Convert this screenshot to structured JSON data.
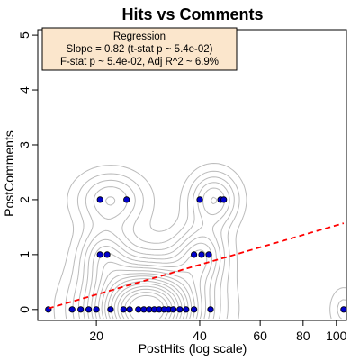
{
  "chart_data": {
    "type": "scatter",
    "title": "Hits vs Comments",
    "xlabel": "PostHits (log scale)",
    "ylabel": "PostComments",
    "x_scale": "log",
    "xlim": [
      13.5,
      107
    ],
    "ylim": [
      -0.2,
      5.1
    ],
    "x_ticks": [
      20,
      40,
      60,
      80,
      100
    ],
    "y_ticks": [
      0,
      1,
      2,
      3,
      4,
      5
    ],
    "points": [
      {
        "x": 14.5,
        "y": 0
      },
      {
        "x": 17,
        "y": 0
      },
      {
        "x": 18,
        "y": 0
      },
      {
        "x": 19,
        "y": 0
      },
      {
        "x": 20,
        "y": 0
      },
      {
        "x": 22,
        "y": 0
      },
      {
        "x": 24,
        "y": 0
      },
      {
        "x": 25,
        "y": 0
      },
      {
        "x": 26.5,
        "y": 0
      },
      {
        "x": 27.5,
        "y": 0
      },
      {
        "x": 28.5,
        "y": 0
      },
      {
        "x": 29.5,
        "y": 0
      },
      {
        "x": 30.5,
        "y": 0
      },
      {
        "x": 31.5,
        "y": 0
      },
      {
        "x": 32.5,
        "y": 0
      },
      {
        "x": 33.5,
        "y": 0
      },
      {
        "x": 35,
        "y": 0
      },
      {
        "x": 36.5,
        "y": 0
      },
      {
        "x": 38.5,
        "y": 0
      },
      {
        "x": 43,
        "y": 0
      },
      {
        "x": 105,
        "y": 0
      },
      {
        "x": 20.5,
        "y": 1
      },
      {
        "x": 21.5,
        "y": 1
      },
      {
        "x": 38.5,
        "y": 1
      },
      {
        "x": 40.5,
        "y": 1
      },
      {
        "x": 42.5,
        "y": 1
      },
      {
        "x": 20.5,
        "y": 2
      },
      {
        "x": 24.5,
        "y": 2
      },
      {
        "x": 40,
        "y": 2
      },
      {
        "x": 46,
        "y": 2
      },
      {
        "x": 47,
        "y": 2
      }
    ],
    "regression_line": {
      "x": [
        14.5,
        105
      ],
      "y": [
        0.02,
        1.57
      ],
      "color": "#ff0000",
      "style": "dashed"
    },
    "point_color": "#0000cc",
    "contour_color": "#bbbbbb",
    "legend": {
      "placement": "top-left",
      "title": "Regression",
      "lines": [
        "Slope = 0.82 (t-stat p ~ 5.4e-02)",
        "F-stat p ~ 5.4e-02, Adj R^2 ~ 6.9%"
      ],
      "background": "#fbe6cc"
    },
    "grid": false
  }
}
